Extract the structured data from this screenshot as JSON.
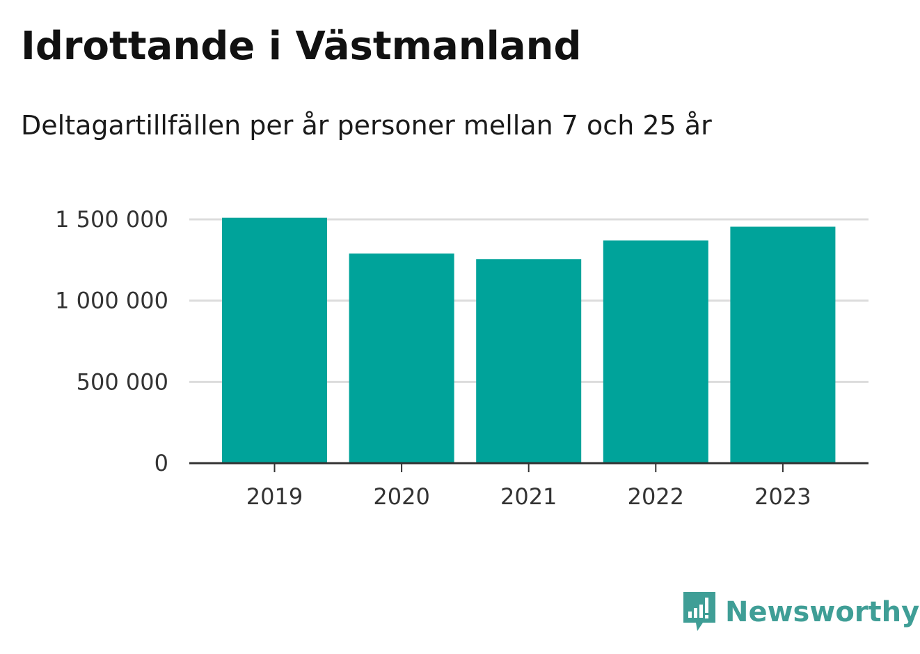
{
  "header": {
    "title": "Idrottande i Västmanland",
    "subtitle": "Deltagartillfällen per år personer mellan 7 och 25 år"
  },
  "colors": {
    "bar": "#00a39a",
    "grid": "#dcdcdc",
    "axis": "#333333",
    "brand": "#3f9e96"
  },
  "brand": {
    "name": "Newsworthy",
    "icon": "newsworthy-logo-icon"
  },
  "chart_data": {
    "type": "bar",
    "categories": [
      "2019",
      "2020",
      "2021",
      "2022",
      "2023"
    ],
    "values": [
      1510000,
      1290000,
      1255000,
      1370000,
      1455000
    ],
    "ylim": [
      0,
      1500000
    ],
    "yticks": [
      0,
      500000,
      1000000,
      1500000
    ],
    "ytick_labels": [
      "0",
      "500 000",
      "1 000 000",
      "1 500 000"
    ],
    "grid": true,
    "legend": "none"
  }
}
